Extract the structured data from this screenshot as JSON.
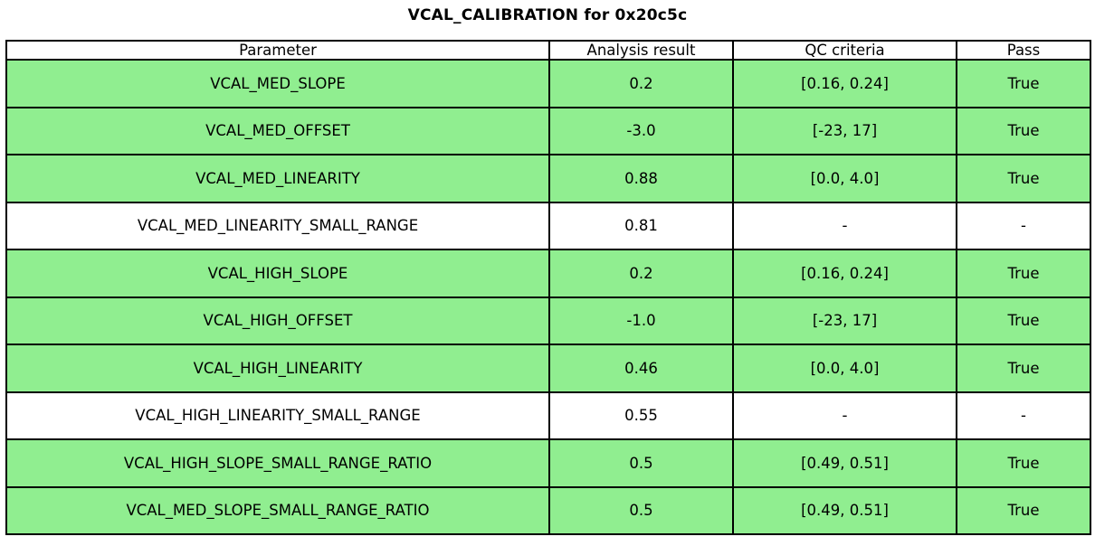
{
  "title": "VCAL_CALIBRATION for 0x20c5c",
  "colors": {
    "pass_row_green": "#90EE90",
    "neutral_row_white": "#FFFFFF",
    "border_black": "#000000",
    "text_black": "#000000"
  },
  "table": {
    "columns": [
      "Parameter",
      "Analysis result",
      "QC criteria",
      "Pass"
    ],
    "rows": [
      {
        "parameter": "VCAL_MED_SLOPE",
        "analysis_result": "0.2",
        "qc_criteria": "[0.16, 0.24]",
        "pass": "True",
        "highlight": true
      },
      {
        "parameter": "VCAL_MED_OFFSET",
        "analysis_result": "-3.0",
        "qc_criteria": "[-23, 17]",
        "pass": "True",
        "highlight": true
      },
      {
        "parameter": "VCAL_MED_LINEARITY",
        "analysis_result": "0.88",
        "qc_criteria": "[0.0, 4.0]",
        "pass": "True",
        "highlight": true
      },
      {
        "parameter": "VCAL_MED_LINEARITY_SMALL_RANGE",
        "analysis_result": "0.81",
        "qc_criteria": "-",
        "pass": "-",
        "highlight": false
      },
      {
        "parameter": "VCAL_HIGH_SLOPE",
        "analysis_result": "0.2",
        "qc_criteria": "[0.16, 0.24]",
        "pass": "True",
        "highlight": true
      },
      {
        "parameter": "VCAL_HIGH_OFFSET",
        "analysis_result": "-1.0",
        "qc_criteria": "[-23, 17]",
        "pass": "True",
        "highlight": true
      },
      {
        "parameter": "VCAL_HIGH_LINEARITY",
        "analysis_result": "0.46",
        "qc_criteria": "[0.0, 4.0]",
        "pass": "True",
        "highlight": true
      },
      {
        "parameter": "VCAL_HIGH_LINEARITY_SMALL_RANGE",
        "analysis_result": "0.55",
        "qc_criteria": "-",
        "pass": "-",
        "highlight": false
      },
      {
        "parameter": "VCAL_HIGH_SLOPE_SMALL_RANGE_RATIO",
        "analysis_result": "0.5",
        "qc_criteria": "[0.49, 0.51]",
        "pass": "True",
        "highlight": true
      },
      {
        "parameter": "VCAL_MED_SLOPE_SMALL_RANGE_RATIO",
        "analysis_result": "0.5",
        "qc_criteria": "[0.49, 0.51]",
        "pass": "True",
        "highlight": true
      }
    ]
  },
  "chart_data": {
    "type": "table",
    "title": "VCAL_CALIBRATION for 0x20c5c",
    "columns": [
      "Parameter",
      "Analysis result",
      "QC criteria",
      "Pass"
    ],
    "rows": [
      [
        "VCAL_MED_SLOPE",
        "0.2",
        "[0.16, 0.24]",
        "True"
      ],
      [
        "VCAL_MED_OFFSET",
        "-3.0",
        "[-23, 17]",
        "True"
      ],
      [
        "VCAL_MED_LINEARITY",
        "0.88",
        "[0.0, 4.0]",
        "True"
      ],
      [
        "VCAL_MED_LINEARITY_SMALL_RANGE",
        "0.81",
        "-",
        "-"
      ],
      [
        "VCAL_HIGH_SLOPE",
        "0.2",
        "[0.16, 0.24]",
        "True"
      ],
      [
        "VCAL_HIGH_OFFSET",
        "-1.0",
        "[-23, 17]",
        "True"
      ],
      [
        "VCAL_HIGH_LINEARITY",
        "0.46",
        "[0.0, 4.0]",
        "True"
      ],
      [
        "VCAL_HIGH_LINEARITY_SMALL_RANGE",
        "0.55",
        "-",
        "-"
      ],
      [
        "VCAL_HIGH_SLOPE_SMALL_RANGE_RATIO",
        "0.5",
        "[0.49, 0.51]",
        "True"
      ],
      [
        "VCAL_MED_SLOPE_SMALL_RANGE_RATIO",
        "0.5",
        "[0.49, 0.51]",
        "True"
      ]
    ],
    "row_highlight_color": "#90EE90",
    "layout_hints": {
      "title_position": "top-center",
      "cell_text_align": "center",
      "grid": "all-borders-black"
    }
  }
}
